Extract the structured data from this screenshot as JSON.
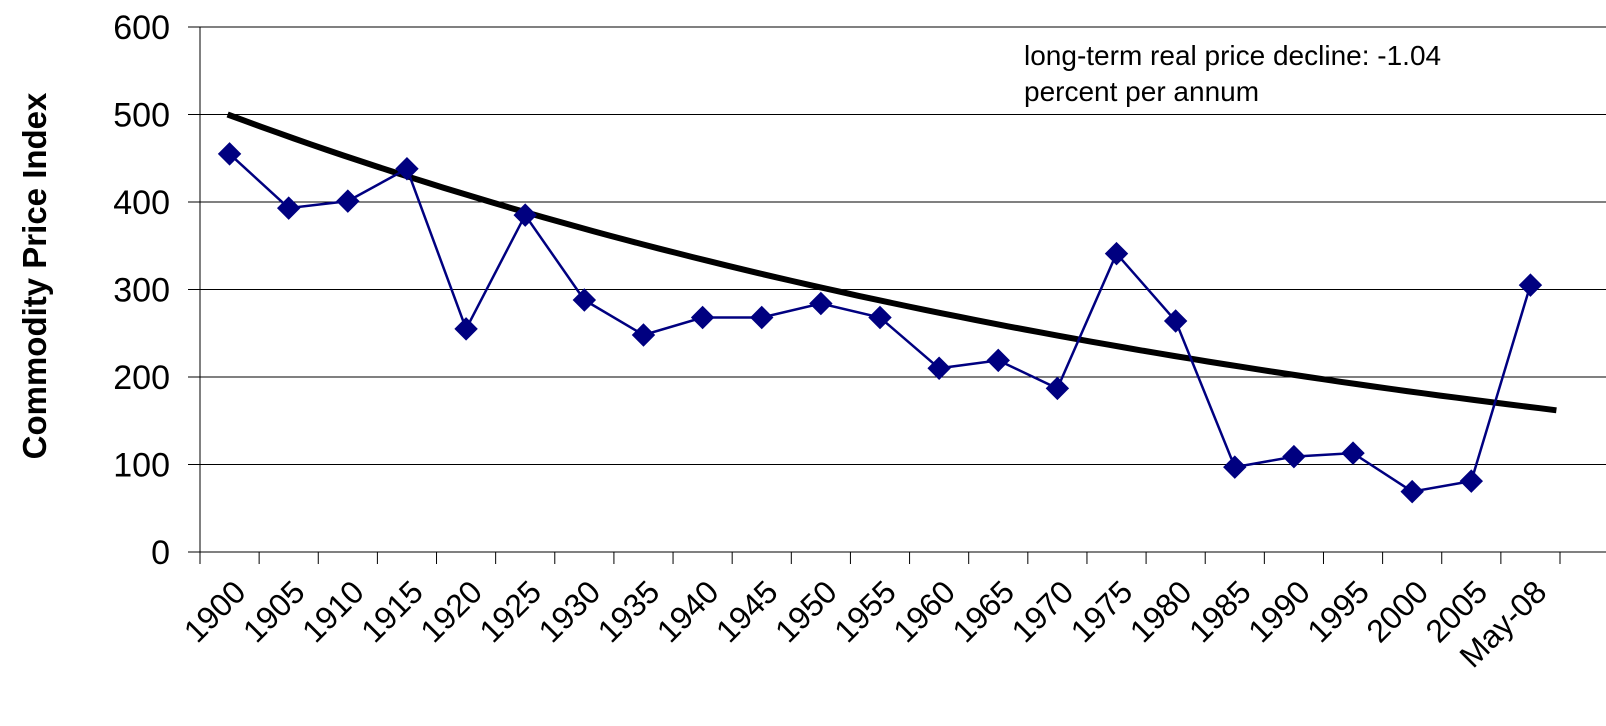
{
  "chart_data": {
    "type": "line",
    "title": "",
    "xlabel": "",
    "ylabel": "Commodity Price Index",
    "ylim": [
      0,
      600
    ],
    "y_ticks": [
      "0",
      "100",
      "200",
      "300",
      "400",
      "500",
      "600"
    ],
    "categories": [
      "1900",
      "1905",
      "1910",
      "1915",
      "1920",
      "1925",
      "1930",
      "1935",
      "1940",
      "1945",
      "1950",
      "1955",
      "1960",
      "1965",
      "1970",
      "1975",
      "1980",
      "1985",
      "1990",
      "1995",
      "2000",
      "2005",
      "May-08"
    ],
    "series": [
      {
        "name": "",
        "color": "#000080",
        "marker": "diamond",
        "values": [
          455,
          393,
          401,
          438,
          255,
          385,
          288,
          248,
          268,
          268,
          284,
          268,
          210,
          219,
          187,
          341,
          264,
          97,
          109,
          113,
          69,
          81,
          305
        ]
      }
    ],
    "trend": {
      "color": "#000000",
      "start_value": 500,
      "end_value": 162
    },
    "grid": "horizontal",
    "legend": "none",
    "annotation": {
      "line1": "long-term real price decline: -1.04",
      "line2": "percent per annum",
      "placement": "top-right"
    }
  }
}
